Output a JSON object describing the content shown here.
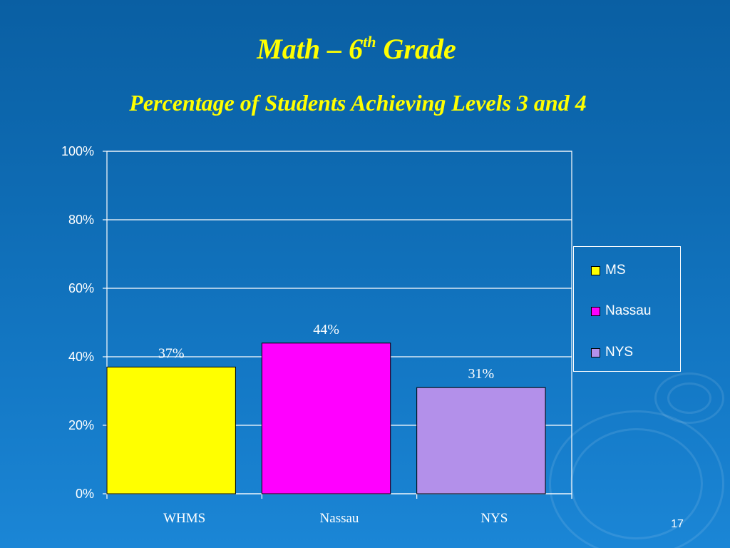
{
  "slide": {
    "title_main": "Math – 6",
    "title_sup": "th",
    "title_rest": "Grade",
    "subtitle": "Percentage of Students Achieving Levels 3 and 4",
    "page_number": "17"
  },
  "colors": {
    "background": "#0e6bb3",
    "title": "#ffff00",
    "text": "#ffffff",
    "gridline": "#ffffff"
  },
  "chart_data": {
    "type": "bar",
    "title": "",
    "xlabel": "",
    "ylabel": "",
    "categories": [
      "WHMS",
      "Nassau",
      "NYS"
    ],
    "values": [
      37,
      44,
      31
    ],
    "data_labels": [
      "37%",
      "44%",
      "31%"
    ],
    "bar_colors": [
      "#ffff00",
      "#ff00ff",
      "#b390ea"
    ],
    "ylim": [
      0,
      100
    ],
    "yticks": [
      0,
      20,
      40,
      60,
      80,
      100
    ],
    "ytick_labels": [
      "0%",
      "20%",
      "40%",
      "60%",
      "80%",
      "100%"
    ],
    "grid": true,
    "legend": {
      "placement": "right",
      "entries": [
        {
          "label": "MS",
          "color": "#ffff00"
        },
        {
          "label": "Nassau",
          "color": "#ff00ff"
        },
        {
          "label": "NYS",
          "color": "#b390ea"
        }
      ]
    }
  }
}
